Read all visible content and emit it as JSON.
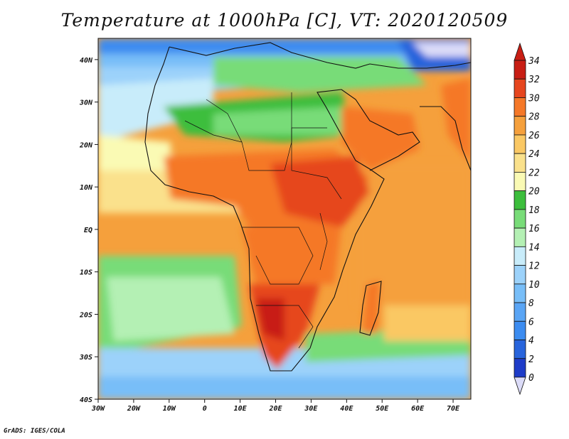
{
  "title": "Temperature at 1000hPa [C], VT: 2020120509",
  "credit": "GrADS: IGES/COLA",
  "map": {
    "projection": "latlon",
    "lon_range": [
      -30,
      75
    ],
    "lat_range": [
      -40,
      45
    ],
    "lon_ticks": [
      {
        "value": -30,
        "label": "30W"
      },
      {
        "value": -20,
        "label": "20W"
      },
      {
        "value": -10,
        "label": "10W"
      },
      {
        "value": 0,
        "label": "0"
      },
      {
        "value": 10,
        "label": "10E"
      },
      {
        "value": 20,
        "label": "20E"
      },
      {
        "value": 30,
        "label": "30E"
      },
      {
        "value": 40,
        "label": "40E"
      },
      {
        "value": 50,
        "label": "50E"
      },
      {
        "value": 60,
        "label": "60E"
      },
      {
        "value": 70,
        "label": "70E"
      }
    ],
    "lat_ticks": [
      {
        "value": 40,
        "label": "40N"
      },
      {
        "value": 30,
        "label": "30N"
      },
      {
        "value": 20,
        "label": "20N"
      },
      {
        "value": 10,
        "label": "10N"
      },
      {
        "value": 0,
        "label": "EQ"
      },
      {
        "value": -10,
        "label": "10S"
      },
      {
        "value": -20,
        "label": "20S"
      },
      {
        "value": -30,
        "label": "30S"
      },
      {
        "value": -40,
        "label": "40S"
      }
    ]
  },
  "colorbar": {
    "levels": [
      0,
      2,
      4,
      6,
      8,
      10,
      12,
      14,
      16,
      18,
      20,
      22,
      24,
      26,
      28,
      30,
      32,
      34
    ],
    "colors": [
      "#1e1e8c",
      "#1e3cc8",
      "#2864dc",
      "#3c8cf0",
      "#5aa5f5",
      "#78bef8",
      "#9cd2fa",
      "#c8ecfa",
      "#b4f0b4",
      "#78dc78",
      "#3cbe3c",
      "#fafab4",
      "#fae18c",
      "#fac864",
      "#f5a03c",
      "#f57828",
      "#e6461e",
      "#c81e14"
    ],
    "under_color": "#dcdcf8",
    "over_color": "#c81e14"
  }
}
